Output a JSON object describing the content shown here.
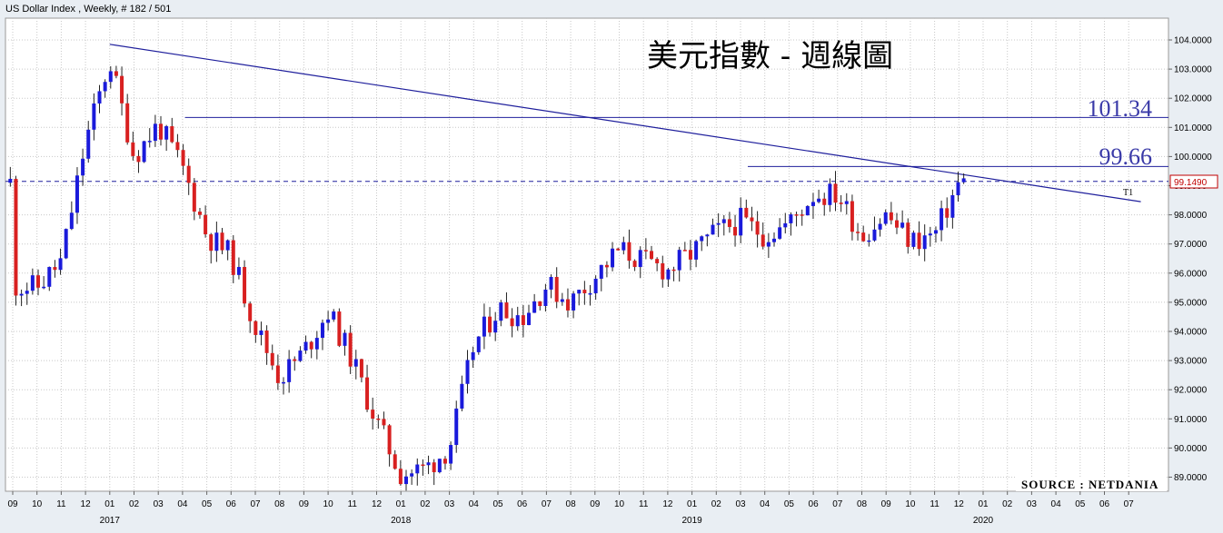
{
  "header": {
    "instrument": "US Dollar Index , Weekly, # 182 / 501"
  },
  "chart_title": "美元指數 - 週線圖",
  "source_label": "SOURCE : NETDANIA",
  "annotations": {
    "level_high": "101.34",
    "level_mid": "99.66",
    "current_price": "99.1490",
    "trendline_label": "T1"
  },
  "colors": {
    "up": "#1a1adb",
    "down": "#d82020",
    "line": "#1f1f9c",
    "grid": "#c8c8c8",
    "background": "#ffffff"
  },
  "chart_data": {
    "type": "candlestick",
    "ylim": [
      88.6,
      104.6
    ],
    "yticks": [
      "104.0000",
      "103.0000",
      "102.0000",
      "101.0000",
      "100.0000",
      "99.0000",
      "98.0000",
      "97.0000",
      "96.0000",
      "95.0000",
      "94.0000",
      "93.0000",
      "92.0000",
      "91.0000",
      "90.0000",
      "89.0000"
    ],
    "months": [
      "09",
      "10",
      "11",
      "12",
      "01",
      "02",
      "03",
      "04",
      "05",
      "06",
      "07",
      "08",
      "09",
      "10",
      "11",
      "12",
      "01",
      "02",
      "03",
      "04",
      "05",
      "06",
      "07",
      "08",
      "09",
      "10",
      "11",
      "12",
      "01",
      "02",
      "03",
      "04",
      "05",
      "06",
      "07",
      "08",
      "09",
      "10",
      "11",
      "12",
      "01",
      "02",
      "03",
      "04",
      "05",
      "06",
      "07"
    ],
    "years": [
      {
        "label": "2017",
        "month_index": 4
      },
      {
        "label": "2018",
        "month_index": 16
      },
      {
        "label": "2019",
        "month_index": 28
      },
      {
        "label": "2020",
        "month_index": 40
      }
    ],
    "horizontal_levels": [
      101.34,
      99.66
    ],
    "current_price_level": 99.149,
    "trendline": {
      "start": [
        4,
        103.85
      ],
      "end": [
        46.5,
        98.45
      ]
    },
    "anchors": [
      [
        0,
        95.6
      ],
      [
        1,
        95.5
      ],
      [
        2,
        96.4
      ],
      [
        3,
        100.5
      ],
      [
        4,
        103.3
      ],
      [
        5,
        100.0
      ],
      [
        6,
        101.1
      ],
      [
        7,
        99.6
      ],
      [
        8,
        97.3
      ],
      [
        9,
        96.6
      ],
      [
        10,
        94.2
      ],
      [
        11,
        92.4
      ],
      [
        12,
        93.3
      ],
      [
        13,
        94.7
      ],
      [
        14,
        93.0
      ],
      [
        15,
        90.9
      ],
      [
        16,
        89.1
      ],
      [
        17,
        89.3
      ],
      [
        18,
        90.0
      ],
      [
        19,
        93.5
      ],
      [
        20,
        94.8
      ],
      [
        21,
        94.5
      ],
      [
        22,
        95.6
      ],
      [
        23,
        95.0
      ],
      [
        24,
        95.9
      ],
      [
        25,
        96.8
      ],
      [
        26,
        96.4
      ],
      [
        27,
        96.1
      ],
      [
        28,
        96.7
      ],
      [
        29,
        97.4
      ],
      [
        30,
        97.8
      ],
      [
        31,
        97.3
      ],
      [
        32,
        97.7
      ],
      [
        33,
        98.7
      ],
      [
        34,
        98.7
      ],
      [
        35,
        97.3
      ],
      [
        36,
        98.0
      ],
      [
        37,
        97.1
      ],
      [
        38,
        97.3
      ],
      [
        39,
        99.1
      ]
    ]
  }
}
